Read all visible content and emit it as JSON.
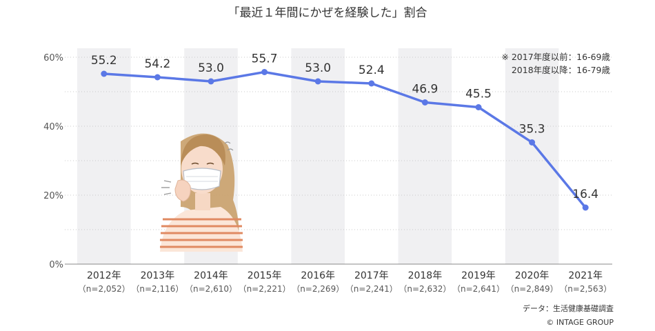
{
  "chart_data": {
    "type": "line",
    "title": "「最近１年間にかぜを経験した」割合",
    "categories": [
      "2012年",
      "2013年",
      "2014年",
      "2015年",
      "2016年",
      "2017年",
      "2018年",
      "2019年",
      "2020年",
      "2021年"
    ],
    "sample_sizes": [
      "（n=2,052）",
      "（n=2,116）",
      "（n=2,610）",
      "（n=2,221）",
      "（n=2,269）",
      "（n=2,241）",
      "（n=2,632）",
      "（n=2,641）",
      "（n=2,849）",
      "（n=2,563）"
    ],
    "series": [
      {
        "values": [
          55.2,
          54.2,
          53.0,
          55.7,
          53.0,
          52.4,
          46.9,
          45.5,
          35.3,
          16.4
        ],
        "color": "#5b78e6"
      }
    ],
    "value_labels": [
      "55.2",
      "54.2",
      "53.0",
      "55.7",
      "53.0",
      "52.4",
      "46.9",
      "45.5",
      "35.3",
      "16.4"
    ],
    "ylim": [
      0,
      60
    ],
    "yticks": [
      0,
      20,
      40,
      60
    ],
    "ytick_labels": [
      "0%",
      "20%",
      "40%",
      "60%"
    ],
    "grid": "dotted horizontal",
    "notes": [
      "※ 2017年度以前：16-69歳",
      "2018年度以降：16-79歳"
    ],
    "source": "データ：生活健康基礎調査",
    "credit": "© INTAGE GROUP",
    "colors": {
      "line": "#5b78e6",
      "band": "#f0f0f2",
      "axis": "#888888"
    }
  }
}
